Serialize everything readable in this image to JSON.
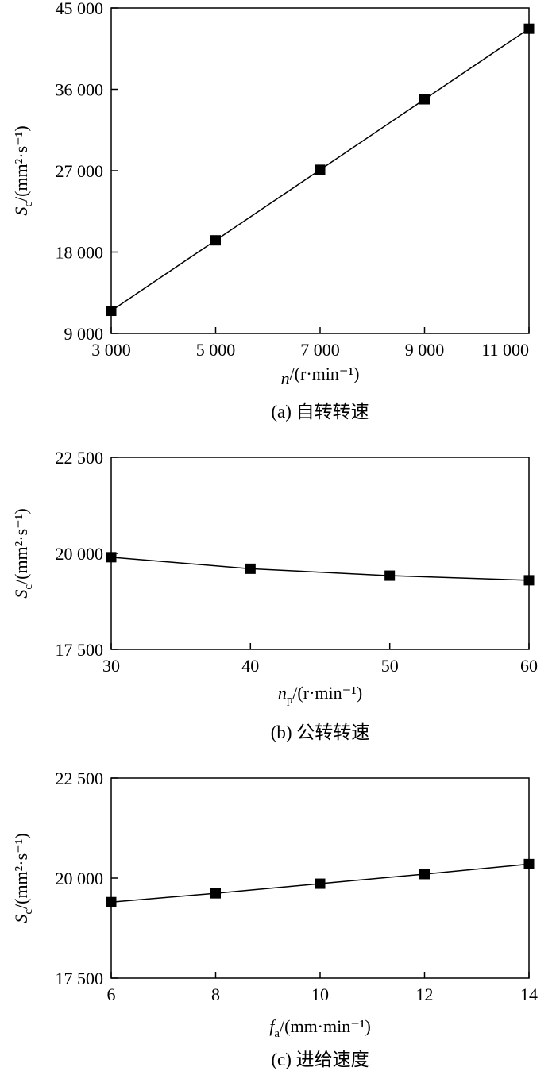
{
  "chart_data": [
    {
      "type": "line",
      "caption": "(a) 自转转速",
      "ylabel": {
        "sym": "S",
        "sub": "c",
        "unit": "/(mm²·s⁻¹)"
      },
      "xlabel": {
        "sym": "n",
        "sub": "",
        "unit": "/(r·min⁻¹)"
      },
      "x_ticks": [
        "3 000",
        "5 000",
        "7 000",
        "9 000",
        "11 000"
      ],
      "y_ticks": [
        "9 000",
        "18 000",
        "27 000",
        "36 000",
        "45 000"
      ],
      "xlim": [
        3000,
        11000
      ],
      "ylim": [
        9000,
        45000
      ],
      "series": [
        {
          "x": [
            3000,
            5000,
            7000,
            9000,
            11000
          ],
          "y": [
            11500,
            19300,
            27100,
            34900,
            42700
          ]
        }
      ]
    },
    {
      "type": "line",
      "caption": "(b) 公转转速",
      "ylabel": {
        "sym": "S",
        "sub": "c",
        "unit": "/(mm²·s⁻¹)"
      },
      "xlabel": {
        "sym": "n",
        "sub": "p",
        "unit": "/(r·min⁻¹)"
      },
      "x_ticks": [
        "30",
        "40",
        "50",
        "60"
      ],
      "y_ticks": [
        "17 500",
        "20 000",
        "22 500"
      ],
      "xlim": [
        30,
        60
      ],
      "ylim": [
        17500,
        22500
      ],
      "series": [
        {
          "x": [
            30,
            40,
            50,
            60
          ],
          "y": [
            19900,
            19600,
            19420,
            19300
          ]
        }
      ]
    },
    {
      "type": "line",
      "caption": "(c) 进给速度",
      "ylabel": {
        "sym": "S",
        "sub": "c",
        "unit": "/(mm²·s⁻¹)"
      },
      "xlabel": {
        "sym": "f",
        "sub": "a",
        "unit": "/(mm·min⁻¹)"
      },
      "x_ticks": [
        "6",
        "8",
        "10",
        "12",
        "14"
      ],
      "y_ticks": [
        "17 500",
        "20 000",
        "22 500"
      ],
      "xlim": [
        6,
        14
      ],
      "ylim": [
        17500,
        22500
      ],
      "series": [
        {
          "x": [
            6,
            8,
            10,
            12,
            14
          ],
          "y": [
            19400,
            19620,
            19860,
            20100,
            20350
          ]
        }
      ]
    }
  ]
}
